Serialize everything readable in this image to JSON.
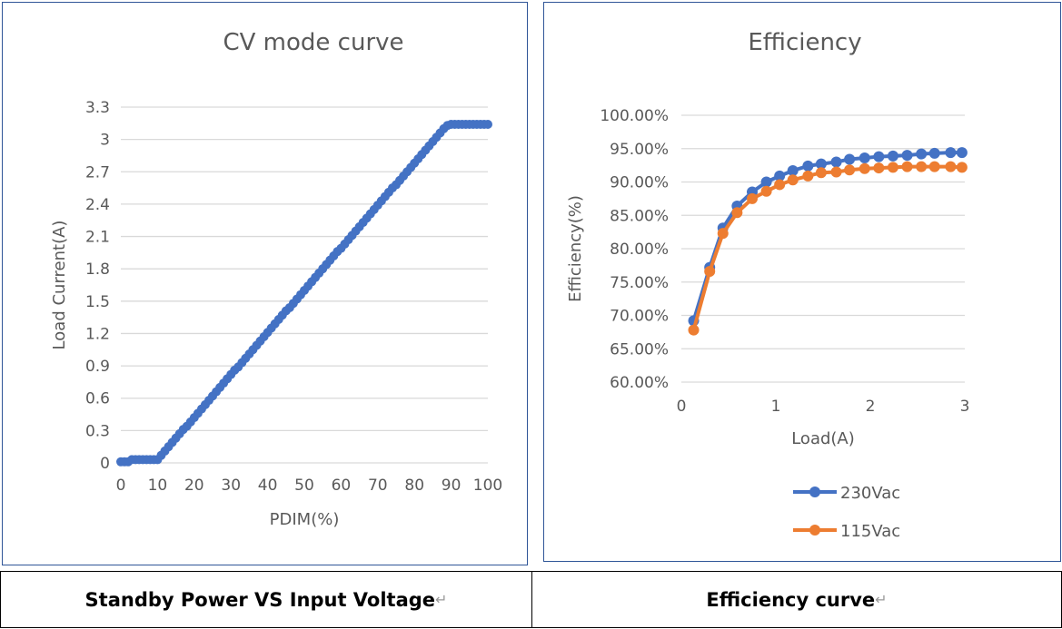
{
  "chart_data": [
    {
      "type": "scatter-line",
      "title": "CV mode curve",
      "xlabel": "PDIM(%)",
      "ylabel": "Load Current(A)",
      "xlim": [
        0,
        100
      ],
      "ylim": [
        0,
        3.3
      ],
      "xticks": [
        "0",
        "10",
        "20",
        "30",
        "40",
        "50",
        "60",
        "70",
        "80",
        "90",
        "100"
      ],
      "yticks": [
        "0",
        "0.3",
        "0.6",
        "0.9",
        "1.2",
        "1.5",
        "1.8",
        "2.1",
        "2.4",
        "2.7",
        "3",
        "3.3"
      ],
      "grid": true,
      "color": "#4472c4",
      "x": [
        0,
        1,
        2,
        3,
        4,
        5,
        6,
        7,
        8,
        9,
        10,
        11,
        12,
        13,
        14,
        15,
        16,
        17,
        18,
        19,
        20,
        21,
        22,
        23,
        24,
        25,
        26,
        27,
        28,
        29,
        30,
        31,
        32,
        33,
        34,
        35,
        36,
        37,
        38,
        39,
        40,
        41,
        42,
        43,
        44,
        45,
        46,
        47,
        48,
        49,
        50,
        51,
        52,
        53,
        54,
        55,
        56,
        57,
        58,
        59,
        60,
        61,
        62,
        63,
        64,
        65,
        66,
        67,
        68,
        69,
        70,
        71,
        72,
        73,
        74,
        75,
        76,
        77,
        78,
        79,
        80,
        81,
        82,
        83,
        84,
        85,
        86,
        87,
        88,
        89,
        90,
        91,
        92,
        93,
        94,
        95,
        96,
        97,
        98,
        99,
        100
      ],
      "y": [
        0.01,
        0.01,
        0.01,
        0.03,
        0.03,
        0.03,
        0.03,
        0.03,
        0.03,
        0.03,
        0.03,
        0.07,
        0.11,
        0.15,
        0.19,
        0.23,
        0.27,
        0.31,
        0.34,
        0.38,
        0.42,
        0.46,
        0.5,
        0.54,
        0.58,
        0.62,
        0.66,
        0.7,
        0.74,
        0.78,
        0.82,
        0.86,
        0.89,
        0.93,
        0.97,
        1.01,
        1.05,
        1.09,
        1.13,
        1.17,
        1.21,
        1.25,
        1.29,
        1.33,
        1.37,
        1.41,
        1.44,
        1.48,
        1.52,
        1.56,
        1.6,
        1.64,
        1.68,
        1.72,
        1.76,
        1.8,
        1.84,
        1.88,
        1.92,
        1.96,
        1.99,
        2.03,
        2.07,
        2.11,
        2.15,
        2.19,
        2.23,
        2.27,
        2.31,
        2.35,
        2.39,
        2.43,
        2.47,
        2.51,
        2.55,
        2.58,
        2.62,
        2.66,
        2.7,
        2.74,
        2.78,
        2.82,
        2.86,
        2.9,
        2.94,
        2.98,
        3.02,
        3.06,
        3.1,
        3.13,
        3.14,
        3.14,
        3.14,
        3.14,
        3.14,
        3.14,
        3.14,
        3.14,
        3.14,
        3.14,
        3.14
      ]
    },
    {
      "type": "line",
      "title": "Efficiency",
      "xlabel": "Load(A)",
      "ylabel": "Efficiency(%)",
      "xlim": [
        0,
        3
      ],
      "ylim": [
        60,
        100
      ],
      "xticks": [
        "0",
        "1",
        "2",
        "3"
      ],
      "yticks": [
        "60.00%",
        "65.00%",
        "70.00%",
        "75.00%",
        "80.00%",
        "85.00%",
        "90.00%",
        "95.00%",
        "100.00%"
      ],
      "grid": true,
      "legend": "bottom",
      "x": [
        0.13,
        0.3,
        0.44,
        0.59,
        0.75,
        0.9,
        1.04,
        1.18,
        1.34,
        1.48,
        1.64,
        1.78,
        1.94,
        2.09,
        2.24,
        2.39,
        2.54,
        2.68,
        2.85,
        2.97
      ],
      "series": [
        {
          "name": "230Vac",
          "color": "#4472c4",
          "values": [
            69.2,
            77.2,
            83.1,
            86.4,
            88.5,
            90.0,
            90.9,
            91.7,
            92.4,
            92.7,
            93.0,
            93.4,
            93.6,
            93.8,
            93.9,
            94.0,
            94.2,
            94.3,
            94.4,
            94.4
          ]
        },
        {
          "name": "115Vac",
          "color": "#ed7d31",
          "values": [
            67.8,
            76.6,
            82.3,
            85.4,
            87.5,
            88.6,
            89.6,
            90.3,
            90.9,
            91.4,
            91.5,
            91.8,
            92.0,
            92.1,
            92.2,
            92.3,
            92.3,
            92.3,
            92.3,
            92.2
          ]
        }
      ]
    }
  ],
  "captions": {
    "left": "Standby Power VS Input Voltage",
    "right": "Efficiency curve",
    "paragraph_mark": "↵"
  }
}
